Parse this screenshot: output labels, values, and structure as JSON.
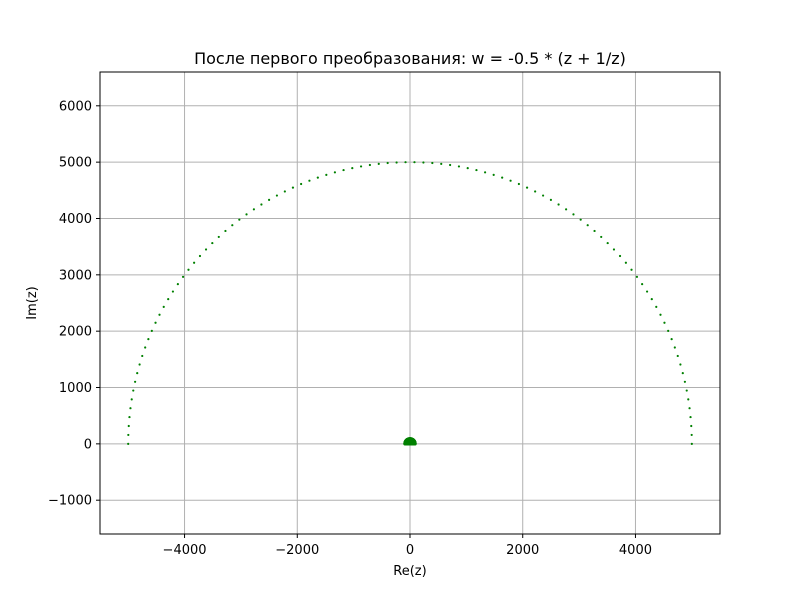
{
  "chart_data": {
    "type": "scatter",
    "title": "После первого преобразования: w = -0.5 * (z + 1/z)",
    "xlabel": "Re(z)",
    "ylabel": "Im(z)",
    "xlim": [
      -5500,
      5500
    ],
    "ylim": [
      -1600,
      6600
    ],
    "xticks": [
      -4000,
      -2000,
      0,
      2000,
      4000
    ],
    "xtick_labels": [
      "−4000",
      "−2000",
      "0",
      "2000",
      "4000"
    ],
    "yticks": [
      -1000,
      0,
      1000,
      2000,
      3000,
      4000,
      5000,
      6000
    ],
    "ytick_labels": [
      "−1000",
      "0",
      "1000",
      "2000",
      "3000",
      "4000",
      "5000",
      "6000"
    ],
    "grid": true,
    "series": [
      {
        "color": "#008000",
        "shape": "outer-semicircle",
        "center": [
          0,
          0
        ],
        "radius": 5000,
        "point_count": 100
      },
      {
        "color": "#008000",
        "shape": "inner-cluster",
        "center": [
          0,
          0
        ],
        "radius": 90,
        "point_count": 400
      }
    ]
  }
}
